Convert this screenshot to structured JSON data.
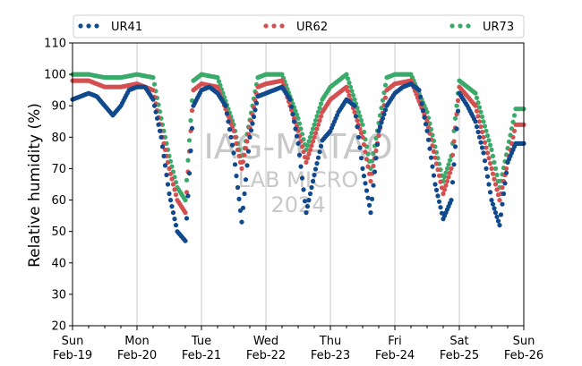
{
  "chart_data": {
    "type": "scatter",
    "ylabel": "Relative humidity (%)",
    "xlabel": "",
    "ylim": [
      20,
      110
    ],
    "yticks": [
      20,
      30,
      40,
      50,
      60,
      70,
      80,
      90,
      100,
      110
    ],
    "xlim": [
      "2024-02-19",
      "2024-02-26"
    ],
    "xticks": [
      {
        "date": "2024-02-19",
        "label": [
          "Sun",
          "Feb-19"
        ]
      },
      {
        "date": "2024-02-20",
        "label": [
          "Mon",
          "Feb-20"
        ]
      },
      {
        "date": "2024-02-21",
        "label": [
          "Tue",
          "Feb-21"
        ]
      },
      {
        "date": "2024-02-22",
        "label": [
          "Wed",
          "Feb-22"
        ]
      },
      {
        "date": "2024-02-23",
        "label": [
          "Thu",
          "Feb-23"
        ]
      },
      {
        "date": "2024-02-24",
        "label": [
          "Fri",
          "Feb-24"
        ]
      },
      {
        "date": "2024-02-25",
        "label": [
          "Sat",
          "Feb-25"
        ]
      },
      {
        "date": "2024-02-26",
        "label": [
          "Sun",
          "Feb-26"
        ]
      }
    ],
    "grid": "vertical",
    "legend_position": "top",
    "watermark": [
      "IAG-MATAO",
      "LAB MICRO",
      "2024"
    ],
    "series": [
      {
        "name": "UR41",
        "color": "#114a8c",
        "points": [
          [
            "2024-02-19T00:00",
            92
          ],
          [
            "2024-02-19T03:00",
            93
          ],
          [
            "2024-02-19T06:00",
            94
          ],
          [
            "2024-02-19T09:00",
            93
          ],
          [
            "2024-02-19T12:00",
            90
          ],
          [
            "2024-02-19T15:00",
            87
          ],
          [
            "2024-02-19T18:00",
            90
          ],
          [
            "2024-02-19T21:00",
            95
          ],
          [
            "2024-02-20T00:00",
            96
          ],
          [
            "2024-02-20T03:00",
            96
          ],
          [
            "2024-02-20T06:00",
            92
          ],
          [
            "2024-02-20T09:00",
            80
          ],
          [
            "2024-02-20T12:00",
            62
          ],
          [
            "2024-02-20T15:00",
            50
          ],
          [
            "2024-02-20T18:00",
            47
          ],
          [
            "2024-02-20T21:00",
            90
          ],
          [
            "2024-02-21T00:00",
            95
          ],
          [
            "2024-02-21T03:00",
            96
          ],
          [
            "2024-02-21T06:00",
            94
          ],
          [
            "2024-02-21T09:00",
            90
          ],
          [
            "2024-02-21T12:00",
            75
          ],
          [
            "2024-02-21T15:00",
            53
          ],
          [
            "2024-02-21T18:00",
            80
          ],
          [
            "2024-02-21T21:00",
            93
          ],
          [
            "2024-02-22T00:00",
            94
          ],
          [
            "2024-02-22T03:00",
            95
          ],
          [
            "2024-02-22T06:00",
            96
          ],
          [
            "2024-02-22T09:00",
            92
          ],
          [
            "2024-02-22T12:00",
            78
          ],
          [
            "2024-02-22T15:00",
            56
          ],
          [
            "2024-02-22T18:00",
            68
          ],
          [
            "2024-02-22T21:00",
            79
          ],
          [
            "2024-02-23T00:00",
            82
          ],
          [
            "2024-02-23T03:00",
            88
          ],
          [
            "2024-02-23T06:00",
            92
          ],
          [
            "2024-02-23T09:00",
            90
          ],
          [
            "2024-02-23T12:00",
            70
          ],
          [
            "2024-02-23T15:00",
            56
          ],
          [
            "2024-02-23T18:00",
            82
          ],
          [
            "2024-02-23T21:00",
            90
          ],
          [
            "2024-02-24T00:00",
            94
          ],
          [
            "2024-02-24T03:00",
            96
          ],
          [
            "2024-02-24T06:00",
            97
          ],
          [
            "2024-02-24T09:00",
            95
          ],
          [
            "2024-02-24T12:00",
            82
          ],
          [
            "2024-02-24T15:00",
            65
          ],
          [
            "2024-02-24T18:00",
            54
          ],
          [
            "2024-02-24T21:00",
            60
          ],
          [
            "2024-02-25T00:00",
            94
          ],
          [
            "2024-02-25T03:00",
            90
          ],
          [
            "2024-02-25T06:00",
            85
          ],
          [
            "2024-02-25T09:00",
            75
          ],
          [
            "2024-02-25T12:00",
            60
          ],
          [
            "2024-02-25T15:00",
            52
          ],
          [
            "2024-02-25T18:00",
            72
          ],
          [
            "2024-02-25T21:00",
            78
          ],
          [
            "2024-02-26T00:00",
            78
          ]
        ]
      },
      {
        "name": "UR62",
        "color": "#d45050",
        "points": [
          [
            "2024-02-19T00:00",
            98
          ],
          [
            "2024-02-19T06:00",
            98
          ],
          [
            "2024-02-19T12:00",
            96
          ],
          [
            "2024-02-19T18:00",
            96
          ],
          [
            "2024-02-20T00:00",
            97
          ],
          [
            "2024-02-20T06:00",
            95
          ],
          [
            "2024-02-20T09:00",
            82
          ],
          [
            "2024-02-20T12:00",
            70
          ],
          [
            "2024-02-20T15:00",
            60
          ],
          [
            "2024-02-20T18:00",
            56
          ],
          [
            "2024-02-20T21:00",
            95
          ],
          [
            "2024-02-21T00:00",
            97
          ],
          [
            "2024-02-21T06:00",
            96
          ],
          [
            "2024-02-21T12:00",
            82
          ],
          [
            "2024-02-21T15:00",
            70
          ],
          [
            "2024-02-21T21:00",
            96
          ],
          [
            "2024-02-22T00:00",
            97
          ],
          [
            "2024-02-22T06:00",
            98
          ],
          [
            "2024-02-22T12:00",
            82
          ],
          [
            "2024-02-22T15:00",
            72
          ],
          [
            "2024-02-22T21:00",
            88
          ],
          [
            "2024-02-23T00:00",
            92
          ],
          [
            "2024-02-23T06:00",
            96
          ],
          [
            "2024-02-23T12:00",
            80
          ],
          [
            "2024-02-23T15:00",
            66
          ],
          [
            "2024-02-23T21:00",
            95
          ],
          [
            "2024-02-24T00:00",
            97
          ],
          [
            "2024-02-24T06:00",
            98
          ],
          [
            "2024-02-24T12:00",
            85
          ],
          [
            "2024-02-24T18:00",
            62
          ],
          [
            "2024-02-24T21:00",
            70
          ],
          [
            "2024-02-25T00:00",
            96
          ],
          [
            "2024-02-25T06:00",
            90
          ],
          [
            "2024-02-25T12:00",
            70
          ],
          [
            "2024-02-25T15:00",
            60
          ],
          [
            "2024-02-25T21:00",
            84
          ],
          [
            "2024-02-26T00:00",
            84
          ]
        ]
      },
      {
        "name": "UR73",
        "color": "#3aaa6a",
        "points": [
          [
            "2024-02-19T00:00",
            100
          ],
          [
            "2024-02-19T06:00",
            100
          ],
          [
            "2024-02-19T12:00",
            99
          ],
          [
            "2024-02-19T18:00",
            99
          ],
          [
            "2024-02-20T00:00",
            100
          ],
          [
            "2024-02-20T06:00",
            99
          ],
          [
            "2024-02-20T09:00",
            86
          ],
          [
            "2024-02-20T12:00",
            74
          ],
          [
            "2024-02-20T15:00",
            64
          ],
          [
            "2024-02-20T18:00",
            60
          ],
          [
            "2024-02-20T21:00",
            98
          ],
          [
            "2024-02-21T00:00",
            100
          ],
          [
            "2024-02-21T06:00",
            99
          ],
          [
            "2024-02-21T12:00",
            84
          ],
          [
            "2024-02-21T15:00",
            72
          ],
          [
            "2024-02-21T21:00",
            99
          ],
          [
            "2024-02-22T00:00",
            100
          ],
          [
            "2024-02-22T06:00",
            100
          ],
          [
            "2024-02-22T12:00",
            86
          ],
          [
            "2024-02-22T15:00",
            76
          ],
          [
            "2024-02-22T21:00",
            92
          ],
          [
            "2024-02-23T00:00",
            96
          ],
          [
            "2024-02-23T06:00",
            100
          ],
          [
            "2024-02-23T12:00",
            84
          ],
          [
            "2024-02-23T15:00",
            70
          ],
          [
            "2024-02-23T21:00",
            99
          ],
          [
            "2024-02-24T00:00",
            100
          ],
          [
            "2024-02-24T06:00",
            100
          ],
          [
            "2024-02-24T12:00",
            88
          ],
          [
            "2024-02-24T18:00",
            66
          ],
          [
            "2024-02-24T21:00",
            74
          ],
          [
            "2024-02-25T00:00",
            98
          ],
          [
            "2024-02-25T06:00",
            94
          ],
          [
            "2024-02-25T12:00",
            76
          ],
          [
            "2024-02-25T15:00",
            64
          ],
          [
            "2024-02-25T21:00",
            89
          ],
          [
            "2024-02-26T00:00",
            89
          ]
        ]
      }
    ]
  }
}
